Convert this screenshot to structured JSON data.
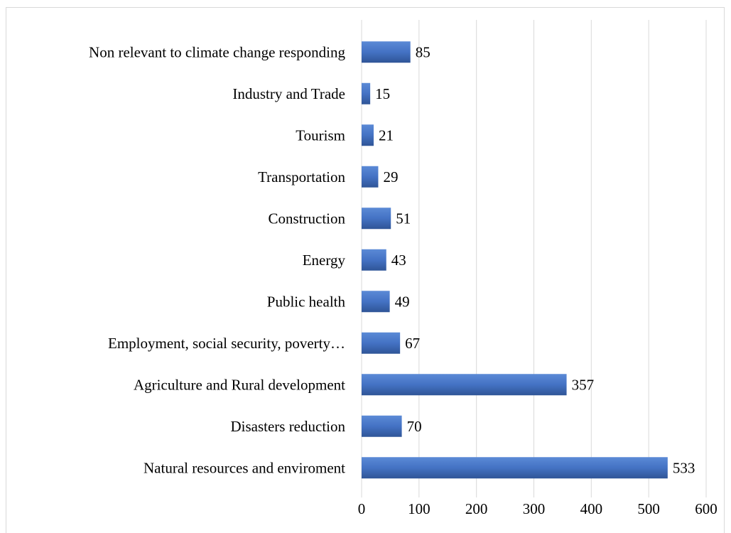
{
  "chart_data": {
    "type": "bar",
    "orientation": "horizontal",
    "categories": [
      "Natural resources and enviroment",
      "Disasters reduction",
      "Agriculture and Rural development",
      "Employment, social security, poverty…",
      "Public health",
      "Energy",
      "Construction",
      "Transportation",
      "Tourism",
      "Industry and Trade",
      "Non relevant to climate change responding"
    ],
    "values": [
      533,
      70,
      357,
      67,
      49,
      43,
      51,
      29,
      21,
      15,
      85
    ],
    "xlim": [
      0,
      600
    ],
    "xticks": [
      0,
      100,
      200,
      300,
      400,
      500,
      600
    ],
    "title": "",
    "xlabel": "",
    "ylabel": "",
    "grid": "vertical",
    "legend": "none",
    "colors": {
      "bar": "#4472c4",
      "bar_light": "#5b8ad6",
      "bar_dark": "#2f5597",
      "grid": "#d9d9d9",
      "frame": "#d9d9d9"
    }
  }
}
